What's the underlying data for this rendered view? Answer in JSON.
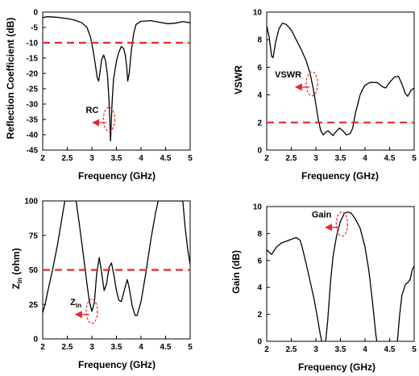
{
  "chart_data": [
    {
      "type": "line",
      "title": "",
      "xlabel": "Frequency (GHz)",
      "ylabel": "Reflection Coefficient (dB)",
      "xlim": [
        2,
        5
      ],
      "ylim": [
        -45,
        0
      ],
      "xticks": [
        "2",
        "2.5",
        "3",
        "3.5",
        "4",
        "4.5",
        "5"
      ],
      "yticks": [
        "0",
        "-5",
        "-10",
        "-15",
        "-20",
        "-25",
        "-30",
        "-35",
        "-40",
        "-45"
      ],
      "series": [
        {
          "values": [
            [
              2.0,
              -1.8
            ],
            [
              2.1,
              -1.5
            ],
            [
              2.3,
              -1.7
            ],
            [
              2.5,
              -2.1
            ],
            [
              2.65,
              -2.6
            ],
            [
              2.8,
              -3.5
            ],
            [
              2.9,
              -5
            ],
            [
              2.97,
              -8
            ],
            [
              3.02,
              -12
            ],
            [
              3.07,
              -17
            ],
            [
              3.11,
              -21.5
            ],
            [
              3.14,
              -22.5
            ],
            [
              3.17,
              -19
            ],
            [
              3.2,
              -15.5
            ],
            [
              3.24,
              -14
            ],
            [
              3.28,
              -16
            ],
            [
              3.32,
              -21
            ],
            [
              3.35,
              -29
            ],
            [
              3.38,
              -42
            ],
            [
              3.41,
              -30
            ],
            [
              3.44,
              -22
            ],
            [
              3.5,
              -16
            ],
            [
              3.55,
              -13
            ],
            [
              3.6,
              -11.2
            ],
            [
              3.65,
              -12
            ],
            [
              3.68,
              -14
            ],
            [
              3.71,
              -18
            ],
            [
              3.73,
              -22.5
            ],
            [
              3.76,
              -20
            ],
            [
              3.8,
              -13
            ],
            [
              3.85,
              -7
            ],
            [
              3.9,
              -4
            ],
            [
              4.0,
              -3
            ],
            [
              4.2,
              -2.8
            ],
            [
              4.4,
              -3.4
            ],
            [
              4.55,
              -3.8
            ],
            [
              4.7,
              -3.6
            ],
            [
              4.85,
              -3.1
            ],
            [
              5.0,
              -3.5
            ]
          ]
        },
        {
          "values": [
            [
              2.0,
              -10
            ],
            [
              5.0,
              -10
            ]
          ]
        }
      ],
      "annotation": {
        "text": "RC",
        "x": 3.35,
        "y": -35
      }
    },
    {
      "type": "line",
      "title": "",
      "xlabel": "Frequency (GHz)",
      "ylabel": "VSWR",
      "xlim": [
        2,
        5
      ],
      "ylim": [
        0,
        10
      ],
      "xticks": [
        "2",
        "2.5",
        "3",
        "3.5",
        "4",
        "4.5",
        "5"
      ],
      "yticks": [
        "0",
        "2",
        "4",
        "6",
        "8",
        "10"
      ],
      "series": [
        {
          "values": [
            [
              2.0,
              9.0
            ],
            [
              2.05,
              8.2
            ],
            [
              2.1,
              6.8
            ],
            [
              2.13,
              6.7
            ],
            [
              2.18,
              7.8
            ],
            [
              2.25,
              8.8
            ],
            [
              2.32,
              9.2
            ],
            [
              2.4,
              9.1
            ],
            [
              2.5,
              8.7
            ],
            [
              2.6,
              8.0
            ],
            [
              2.7,
              7.3
            ],
            [
              2.8,
              6.5
            ],
            [
              2.88,
              5.6
            ],
            [
              2.95,
              4.4
            ],
            [
              3.0,
              3.3
            ],
            [
              3.05,
              2.2
            ],
            [
              3.1,
              1.4
            ],
            [
              3.15,
              1.1
            ],
            [
              3.2,
              1.3
            ],
            [
              3.25,
              1.4
            ],
            [
              3.3,
              1.2
            ],
            [
              3.35,
              1.05
            ],
            [
              3.4,
              1.3
            ],
            [
              3.48,
              1.6
            ],
            [
              3.55,
              1.4
            ],
            [
              3.62,
              1.1
            ],
            [
              3.7,
              1.2
            ],
            [
              3.75,
              1.6
            ],
            [
              3.8,
              2.6
            ],
            [
              3.85,
              3.3
            ],
            [
              3.9,
              4.0
            ],
            [
              3.95,
              4.4
            ],
            [
              4.0,
              4.7
            ],
            [
              4.1,
              4.9
            ],
            [
              4.25,
              4.9
            ],
            [
              4.35,
              4.6
            ],
            [
              4.42,
              4.5
            ],
            [
              4.5,
              4.9
            ],
            [
              4.6,
              5.3
            ],
            [
              4.68,
              5.35
            ],
            [
              4.75,
              4.8
            ],
            [
              4.82,
              4.1
            ],
            [
              4.87,
              3.9
            ],
            [
              4.93,
              4.3
            ],
            [
              5.0,
              4.5
            ]
          ]
        },
        {
          "values": [
            [
              2.0,
              2.0
            ],
            [
              5.0,
              2.0
            ]
          ]
        }
      ],
      "annotation": {
        "text": "VSWR",
        "x": 2.92,
        "y": 4.8
      }
    },
    {
      "type": "line",
      "title": "",
      "xlabel": "Frequency (GHz)",
      "ylabel": "Z",
      "ylabel_sub": "in",
      "ylabel_suffix": " (ohm)",
      "xlim": [
        2,
        5
      ],
      "ylim": [
        0,
        100
      ],
      "xticks": [
        "2",
        "2.5",
        "3",
        "3.5",
        "4",
        "4.5",
        "5"
      ],
      "yticks": [
        "0",
        "25",
        "50",
        "75",
        "100"
      ],
      "series": [
        {
          "values": [
            [
              2.0,
              19
            ],
            [
              2.05,
              25
            ],
            [
              2.1,
              34
            ],
            [
              2.2,
              50
            ],
            [
              2.3,
              68
            ],
            [
              2.38,
              85
            ],
            [
              2.45,
              100
            ],
            [
              2.68,
              100
            ],
            [
              2.75,
              82
            ],
            [
              2.83,
              60
            ],
            [
              2.9,
              40
            ],
            [
              2.95,
              27
            ],
            [
              3.0,
              20
            ],
            [
              3.05,
              26
            ],
            [
              3.1,
              48
            ],
            [
              3.15,
              59
            ],
            [
              3.19,
              50
            ],
            [
              3.25,
              35
            ],
            [
              3.3,
              40
            ],
            [
              3.35,
              52
            ],
            [
              3.4,
              55
            ],
            [
              3.45,
              46
            ],
            [
              3.5,
              35
            ],
            [
              3.55,
              28
            ],
            [
              3.6,
              27
            ],
            [
              3.65,
              34
            ],
            [
              3.72,
              43
            ],
            [
              3.76,
              37
            ],
            [
              3.82,
              24
            ],
            [
              3.88,
              17
            ],
            [
              3.92,
              17
            ],
            [
              4.0,
              27
            ],
            [
              4.1,
              48
            ],
            [
              4.2,
              72
            ],
            [
              4.3,
              92
            ],
            [
              4.35,
              100
            ],
            [
              4.85,
              100
            ],
            [
              4.9,
              80
            ],
            [
              4.95,
              65
            ],
            [
              5.0,
              54
            ]
          ]
        },
        {
          "values": [
            [
              2.0,
              50
            ],
            [
              5.0,
              50
            ]
          ]
        }
      ],
      "annotation": {
        "text": "Z",
        "text_sub": "in",
        "x": 3.0,
        "y": 20
      }
    },
    {
      "type": "line",
      "title": "",
      "xlabel": "Frequency (GHz)",
      "ylabel": "Gain (dB)",
      "xlim": [
        2,
        5
      ],
      "ylim": [
        0,
        10
      ],
      "xticks": [
        "2",
        "2.5",
        "3",
        "3.5",
        "4",
        "4.5",
        "5"
      ],
      "yticks": [
        "0",
        "2",
        "4",
        "6",
        "8",
        "10"
      ],
      "series": [
        {
          "values": [
            [
              2.0,
              6.8
            ],
            [
              2.05,
              6.6
            ],
            [
              2.1,
              6.45
            ],
            [
              2.2,
              7.0
            ],
            [
              2.3,
              7.3
            ],
            [
              2.45,
              7.5
            ],
            [
              2.6,
              7.7
            ],
            [
              2.68,
              7.5
            ],
            [
              2.72,
              7.0
            ],
            [
              2.8,
              5.8
            ],
            [
              2.88,
              4.5
            ],
            [
              2.96,
              3.2
            ],
            [
              3.03,
              1.8
            ],
            [
              3.09,
              0.5
            ],
            [
              3.12,
              0.0
            ]
          ]
        },
        {
          "values": [
            [
              3.2,
              0.0
            ],
            [
              3.24,
              1.5
            ],
            [
              3.3,
              4.5
            ],
            [
              3.35,
              6.3
            ],
            [
              3.42,
              7.8
            ],
            [
              3.5,
              8.9
            ],
            [
              3.58,
              9.5
            ],
            [
              3.65,
              9.6
            ],
            [
              3.72,
              9.5
            ],
            [
              3.8,
              9.1
            ],
            [
              3.9,
              8.4
            ],
            [
              4.0,
              7.0
            ],
            [
              4.08,
              5.2
            ],
            [
              4.15,
              3.0
            ],
            [
              4.22,
              0.5
            ],
            [
              4.24,
              0.0
            ]
          ]
        },
        {
          "values": [
            [
              4.66,
              0.0
            ],
            [
              4.7,
              1.8
            ],
            [
              4.75,
              3.4
            ],
            [
              4.82,
              4.2
            ],
            [
              4.88,
              4.4
            ],
            [
              4.92,
              4.6
            ],
            [
              4.96,
              5.3
            ],
            [
              5.0,
              5.6
            ]
          ]
        }
      ],
      "annotation": {
        "text": "Gain",
        "x": 3.53,
        "y": 8.7
      }
    }
  ]
}
